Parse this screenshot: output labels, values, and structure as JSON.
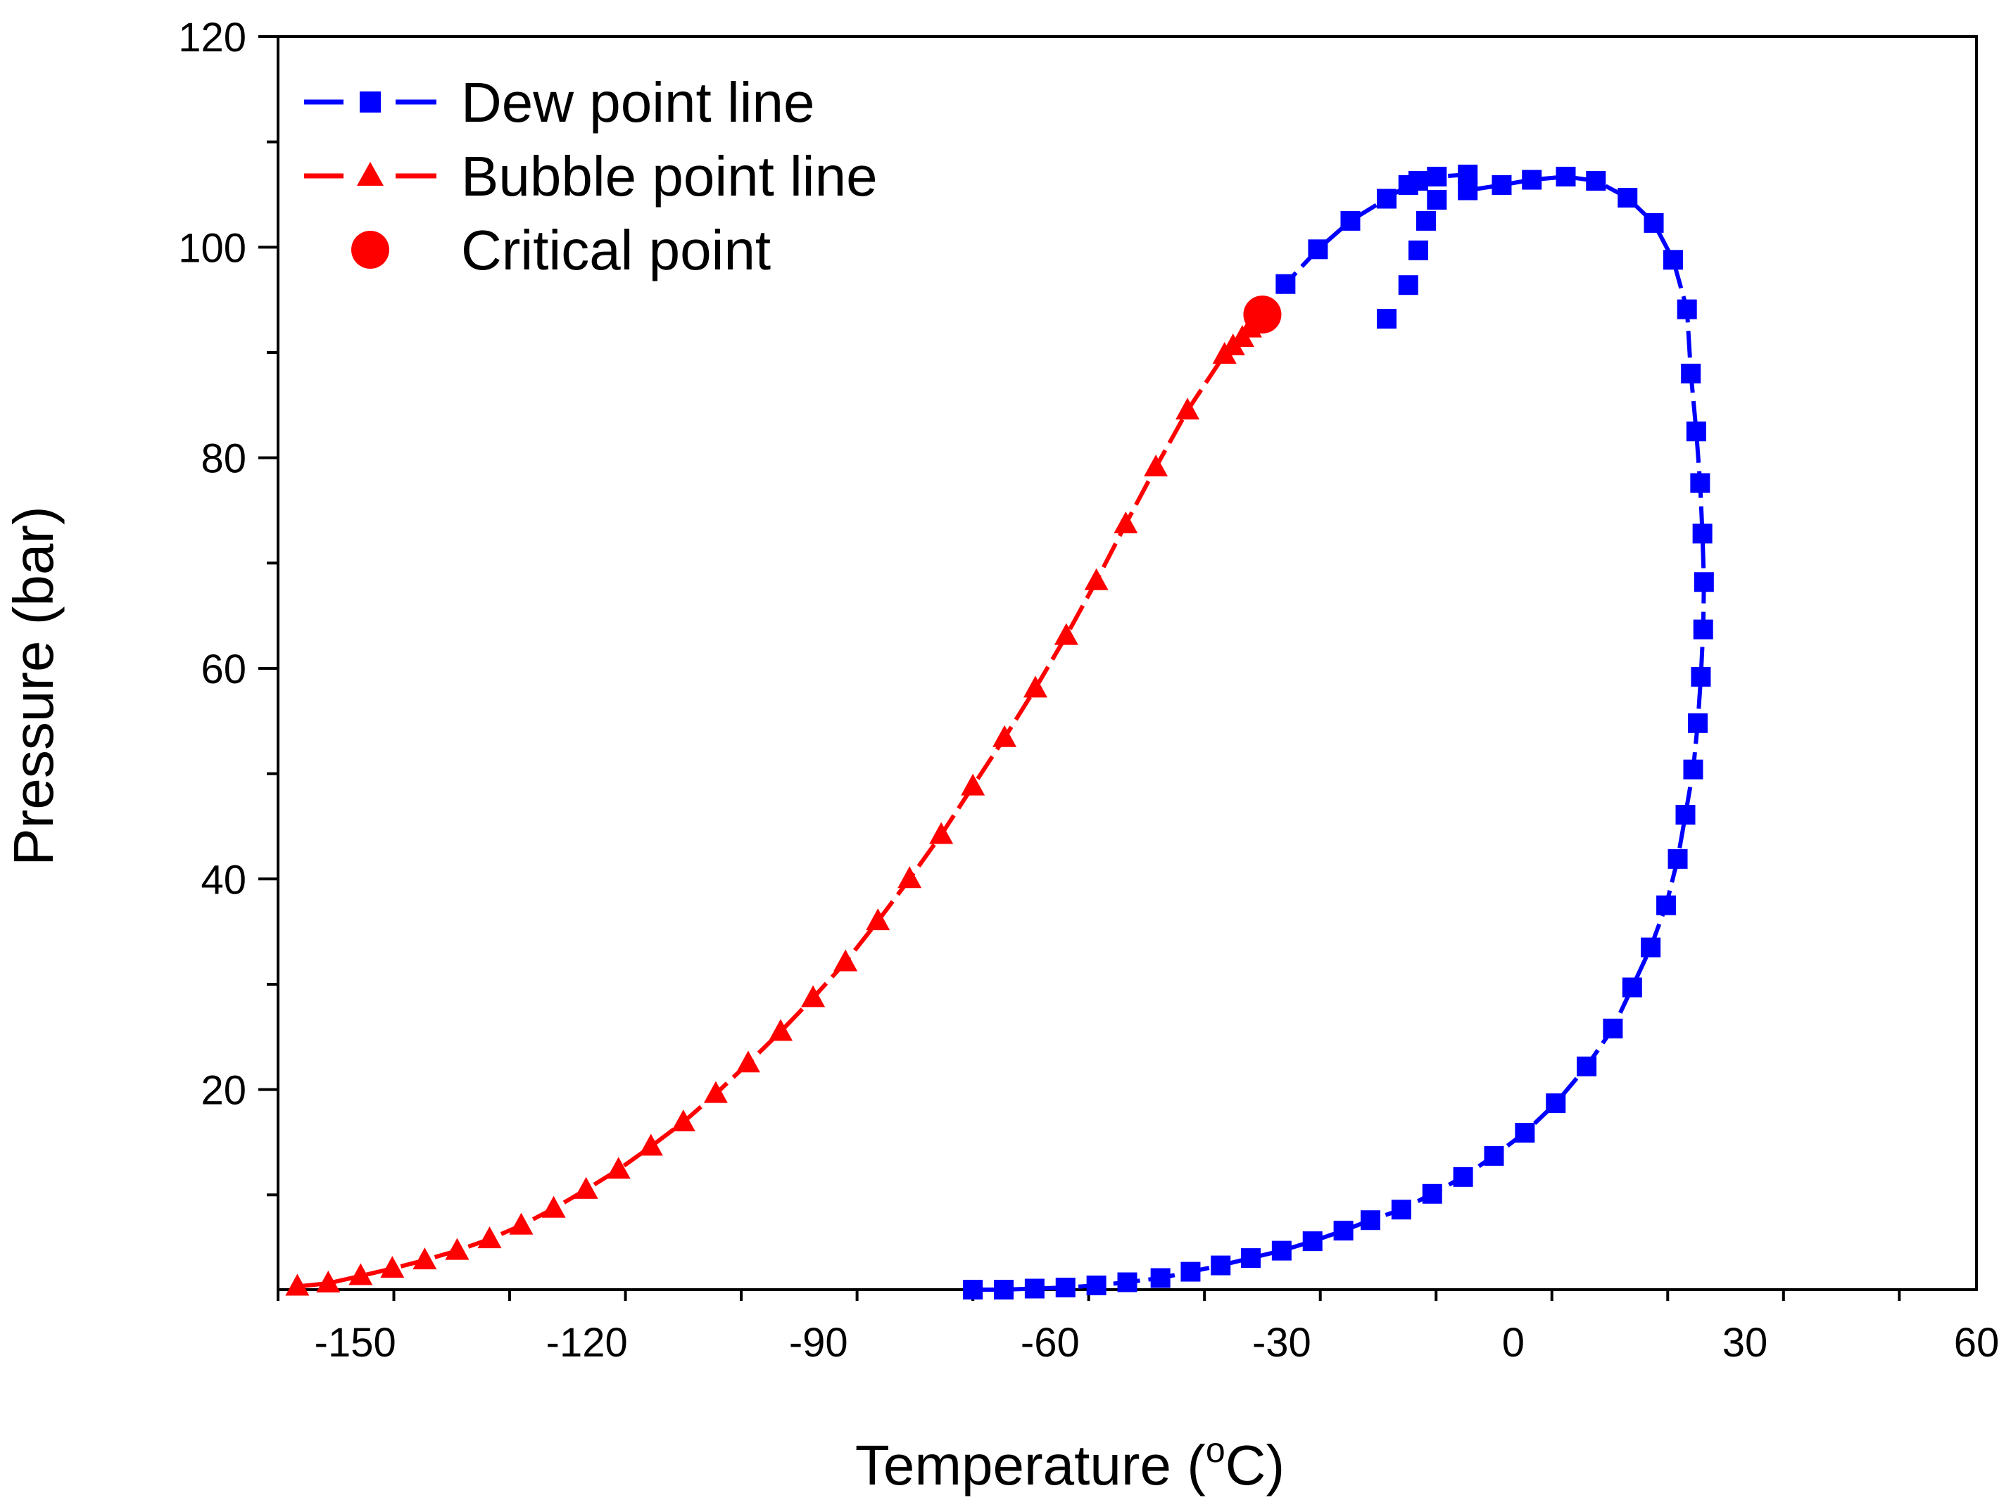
{
  "chart_data": {
    "type": "line",
    "xlabel": "Temperature (",
    "xlabel_sup": "o",
    "xlabel_end": "C)",
    "ylabel": "Pressure (bar)",
    "xlim": [
      -160,
      60
    ],
    "ylim": [
      1,
      120
    ],
    "x_ticks": [
      -150,
      -120,
      -90,
      -60,
      -30,
      0,
      30,
      60
    ],
    "y_ticks": [
      20,
      40,
      60,
      80,
      100,
      120
    ],
    "x_tick_labels": [
      "-150",
      "-120",
      "-90",
      "-60",
      "-30",
      "0",
      "30",
      "60"
    ],
    "y_tick_labels": [
      "20",
      "40",
      "60",
      "80",
      "100",
      "120"
    ],
    "legend_position": "top-left",
    "series": [
      {
        "name": "Dew point line",
        "color": "#0000ff",
        "marker": "square",
        "x": [
          -70,
          -66,
          -62,
          -58,
          -54,
          -50,
          -45.7,
          -41.8,
          -37.9,
          -34,
          -30,
          -26,
          -22,
          -18.5,
          -14.5,
          -10.5,
          -6.5,
          -2.5,
          1.5,
          5.5,
          9.5,
          12.9,
          15.4,
          17.8,
          19.8,
          21.3,
          22.3,
          23.3,
          23.9,
          24.3,
          24.6,
          24.7,
          24.5,
          24.2,
          23.7,
          23,
          22.5,
          20.7,
          18.2,
          14.8,
          10.7,
          6.8,
          2.4,
          -1.5,
          -5.9,
          -9.9,
          -11.3,
          -12.3,
          -13.6,
          -16.4,
          -21.1,
          -25.3,
          -29.5,
          -32.5
        ],
        "y": [
          1,
          1,
          1.1,
          1.2,
          1.4,
          1.7,
          2.1,
          2.7,
          3.3,
          4,
          4.7,
          5.6,
          6.6,
          7.6,
          8.6,
          10.1,
          11.7,
          13.7,
          15.9,
          18.7,
          22.2,
          25.8,
          29.7,
          33.5,
          37.5,
          41.9,
          46.1,
          50.4,
          54.8,
          59.2,
          63.7,
          68.2,
          72.8,
          77.6,
          82.5,
          88,
          94.1,
          98.8,
          102.3,
          104.7,
          106.3,
          106.7,
          106.4,
          105.9,
          105.4,
          104.5,
          102.5,
          99.7,
          96.4,
          93.2,
          107,
          106.6,
          106.1,
          105.7
        ],
        "curve_x": [
          -70,
          -66,
          -62,
          -58,
          -54,
          -50,
          -45.7,
          -41.8,
          -37.9,
          -34,
          -30,
          -26,
          -22,
          -18.5,
          -14.5,
          -10.5,
          -6.5,
          -2.5,
          1.5,
          5.5,
          9.5,
          12.9,
          15.4,
          17.8,
          19.8,
          21.3,
          22.3,
          23.3,
          23.9,
          24.3,
          24.6,
          24.7,
          24.5,
          24.2,
          23.7,
          23,
          22.5,
          20.7,
          18.2,
          14.8,
          10.7,
          6.8,
          2.4,
          -1.5,
          -5.9,
          -9.9,
          -11.3,
          -12.3,
          -13.6,
          -16.4,
          -21.1,
          -25.3,
          -29.5,
          -32.5
        ],
        "curve_y": [
          1,
          1,
          1.1,
          1.2,
          1.4,
          1.7,
          2.1,
          2.7,
          3.3,
          4,
          4.7,
          5.6,
          6.6,
          7.6,
          8.6,
          10.1,
          11.7,
          13.7,
          15.9,
          18.7,
          22.2,
          25.8,
          29.7,
          33.5,
          37.5,
          41.9,
          46.1,
          50.4,
          54.8,
          59.2,
          63.7,
          68.2,
          72.8,
          77.6,
          82.5,
          88,
          94.1,
          98.8,
          102.3,
          104.7,
          106.3,
          106.7,
          106.4,
          105.9,
          105.4,
          104.5,
          102.5,
          99.7,
          96.4,
          93.2,
          107,
          106.6,
          106.1,
          105.7
        ]
      },
      {
        "name": "Bubble point line",
        "color": "#ff0000",
        "marker": "triangle",
        "x": [
          -157.5,
          -153.5,
          -149.3,
          -145.2,
          -141,
          -136.8,
          -132.6,
          -128.5,
          -124.3,
          -120.1,
          -115.9,
          -111.7,
          -107.5,
          -103.3,
          -99.1,
          -94.9,
          -90.7,
          -86.5,
          -82.3,
          -78.2,
          -74.1,
          -70,
          -65.9,
          -61.9,
          -57.9,
          -54,
          -50.2,
          -46.3,
          -42.2,
          -37.4,
          -36.3,
          -35.1,
          -34.1,
          -33.2
        ],
        "y": [
          1.3,
          1.6,
          2.3,
          3,
          3.8,
          4.7,
          5.8,
          7.1,
          8.7,
          10.5,
          12.4,
          14.6,
          16.9,
          19.6,
          22.5,
          25.5,
          28.7,
          32.1,
          36,
          40,
          44.2,
          48.8,
          53.4,
          58.1,
          63.1,
          68.3,
          73.7,
          79.1,
          84.5,
          89.8,
          90.6,
          91.4,
          92.3,
          93.2
        ]
      }
    ],
    "critical_point": {
      "name": "Critical point",
      "x": -32.5,
      "y": 93.6,
      "color": "#ff0000"
    }
  }
}
